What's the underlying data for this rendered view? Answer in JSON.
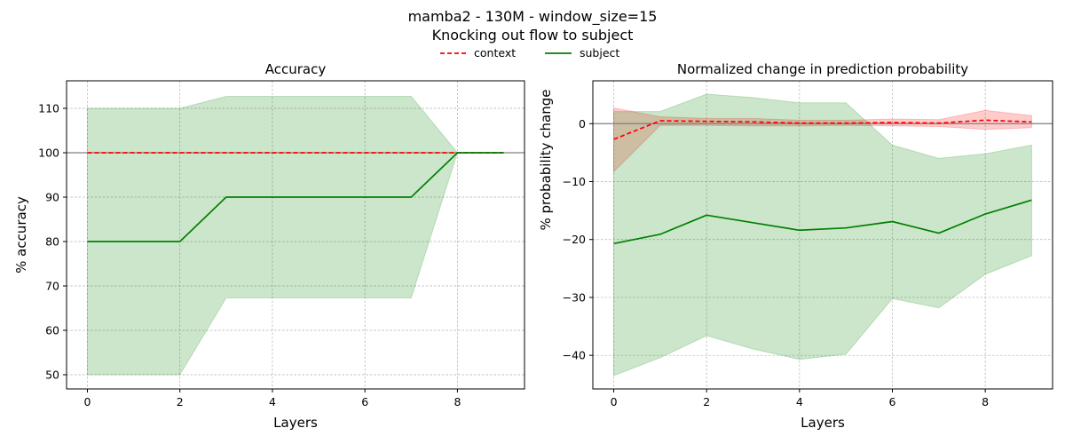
{
  "figure": {
    "suptitle_line1": "mamba2 - 130M - window_size=15",
    "suptitle_line2": "Knocking out flow to subject"
  },
  "legend": {
    "placement": "top-center",
    "entries": [
      {
        "label": "context",
        "color": "#ff0000",
        "style": "dashed"
      },
      {
        "label": "subject",
        "color": "#008000",
        "style": "solid"
      }
    ]
  },
  "chart_data": [
    {
      "type": "line",
      "title": "Accuracy",
      "xlabel": "Layers",
      "ylabel": "% accuracy",
      "xlim": [
        -0.45,
        9.45
      ],
      "ylim": [
        46.8,
        116.2
      ],
      "xticks": [
        0,
        2,
        4,
        6,
        8
      ],
      "yticks": [
        50,
        60,
        70,
        80,
        90,
        100,
        110
      ],
      "grid": true,
      "reference_line_y": 100,
      "x": [
        0,
        1,
        2,
        3,
        4,
        5,
        6,
        7,
        8,
        9
      ],
      "series": [
        {
          "name": "context",
          "color": "#ff0000",
          "style": "dashed",
          "values": [
            100,
            100,
            100,
            100,
            100,
            100,
            100,
            100,
            100,
            100
          ],
          "band_low": [
            100,
            100,
            100,
            100,
            100,
            100,
            100,
            100,
            100,
            100
          ],
          "band_high": [
            100,
            100,
            100,
            100,
            100,
            100,
            100,
            100,
            100,
            100
          ]
        },
        {
          "name": "subject",
          "color": "#008000",
          "style": "solid",
          "values": [
            80,
            80,
            80,
            90,
            90,
            90,
            90,
            90,
            100,
            100
          ],
          "band_low": [
            50,
            50,
            50,
            67.3,
            67.3,
            67.3,
            67.3,
            67.3,
            100,
            100
          ],
          "band_high": [
            110,
            110,
            110,
            112.7,
            112.7,
            112.7,
            112.7,
            112.7,
            100,
            100
          ]
        }
      ]
    },
    {
      "type": "line",
      "title": "Normalized change in prediction probability",
      "xlabel": "Layers",
      "ylabel": "% probability change",
      "xlim": [
        -0.45,
        9.45
      ],
      "ylim": [
        -45.8,
        7.4
      ],
      "xticks": [
        0,
        2,
        4,
        6,
        8
      ],
      "yticks": [
        -40,
        -30,
        -20,
        -10,
        0
      ],
      "grid": true,
      "reference_line_y": 0,
      "x": [
        0,
        1,
        2,
        3,
        4,
        5,
        6,
        7,
        8,
        9
      ],
      "series": [
        {
          "name": "context",
          "color": "#ff0000",
          "style": "dashed",
          "values": [
            -2.7,
            0.5,
            0.4,
            0.3,
            0.1,
            0.1,
            0.2,
            0.1,
            0.6,
            0.3
          ],
          "band_low": [
            -8.3,
            -0.3,
            -0.3,
            -0.4,
            -0.4,
            -0.3,
            -0.4,
            -0.5,
            -1.0,
            -0.7
          ],
          "band_high": [
            2.7,
            1.2,
            0.9,
            0.9,
            0.6,
            0.6,
            0.8,
            0.7,
            2.3,
            1.4
          ]
        },
        {
          "name": "subject",
          "color": "#008000",
          "style": "solid",
          "values": [
            -20.7,
            -19.1,
            -15.8,
            -17.1,
            -18.4,
            -18.0,
            -16.9,
            -18.9,
            -15.6,
            -13.2
          ],
          "band_low": [
            -43.5,
            -40.4,
            -36.6,
            -38.9,
            -40.7,
            -39.8,
            -30.2,
            -31.8,
            -26.0,
            -22.8
          ],
          "band_high": [
            2.1,
            2.1,
            5.1,
            4.5,
            3.6,
            3.6,
            -3.7,
            -6.0,
            -5.2,
            -3.7
          ]
        }
      ]
    }
  ]
}
